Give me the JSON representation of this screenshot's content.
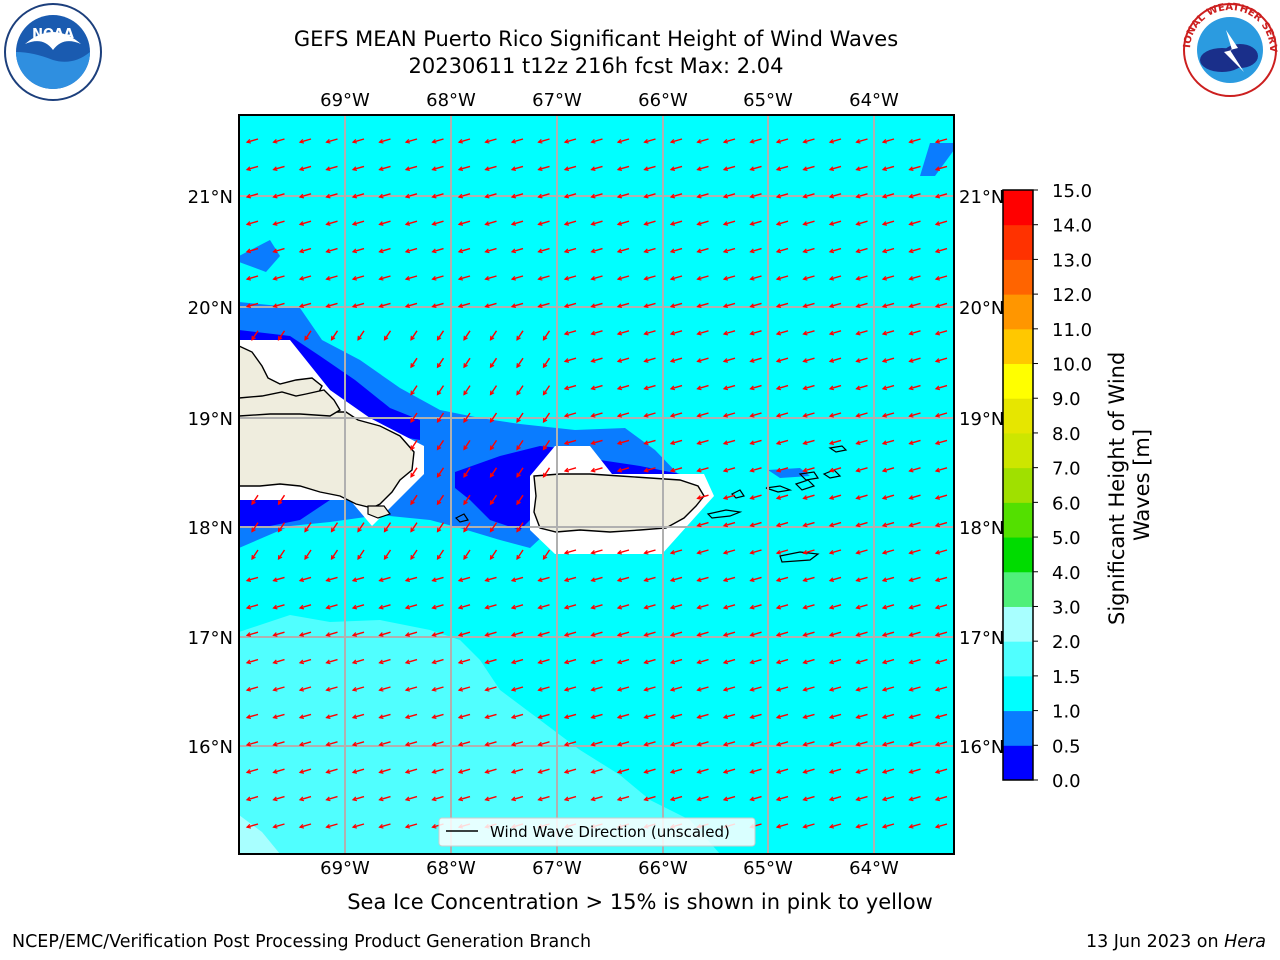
{
  "header": {
    "title_line1": "GEFS MEAN Puerto Rico Significant Height of Wind Waves",
    "title_line2": "20230611 t12z 216h fcst   Max: 2.04"
  },
  "map": {
    "lon_labels_top": [
      "69°W",
      "68°W",
      "67°W",
      "66°W",
      "65°W",
      "64°W"
    ],
    "lon_labels_bottom": [
      "69°W",
      "68°W",
      "67°W",
      "66°W",
      "65°W",
      "64°W"
    ],
    "lat_labels_left": [
      "21°N",
      "20°N",
      "19°N",
      "18°N",
      "17°N",
      "16°N"
    ],
    "lat_labels_right": [
      "21°N",
      "20°N",
      "19°N",
      "18°N",
      "17°N",
      "16°N"
    ],
    "legend_label": "Wind Wave Direction (unscaled)",
    "arrow_color": "#ff0000",
    "land_color": "#efedde",
    "fill_colors": {
      "0.0-0.5": "#0000ff",
      "0.5-1.0": "#0a7cff",
      "1.0-1.5": "#00ffff",
      "1.5-2.0": "#50ffff",
      "2.0-3.0": "#a8ffff"
    }
  },
  "colorbar": {
    "title": "Significant Height of Wind Waves [m]",
    "tick_labels": [
      "0.0",
      "0.5",
      "1.0",
      "1.5",
      "2.0",
      "3.0",
      "4.0",
      "5.0",
      "6.0",
      "7.0",
      "8.0",
      "9.0",
      "10.0",
      "11.0",
      "12.0",
      "13.0",
      "14.0",
      "15.0"
    ],
    "colors": [
      "#0000ff",
      "#0a7cff",
      "#00ffff",
      "#50ffff",
      "#a8ffff",
      "#4ff07a",
      "#00dc00",
      "#53e000",
      "#a0e000",
      "#cde600",
      "#e6e600",
      "#ffff00",
      "#ffc800",
      "#ff9600",
      "#ff6400",
      "#ff3200",
      "#ff0000"
    ]
  },
  "footer": {
    "note": "Sea Ice Concentration > 15% is shown in pink to yellow",
    "left": "NCEP/EMC/Verification Post Processing Product Generation Branch",
    "right_prefix": "13 Jun 2023 on ",
    "right_machine": "Hera"
  },
  "logos": {
    "noaa_text": "NOAA",
    "nws_text": "NATIONAL WEATHER SERVICE"
  }
}
